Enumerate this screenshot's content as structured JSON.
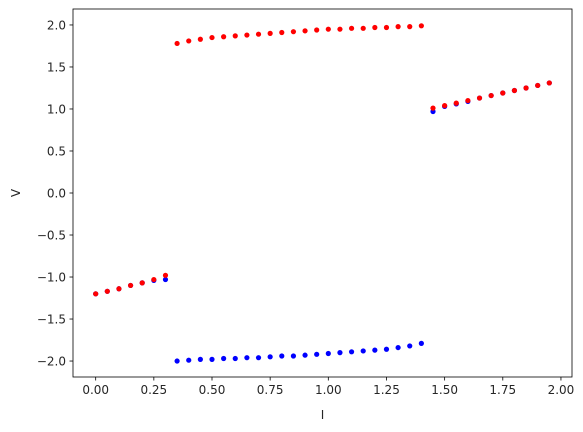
{
  "chart_data": {
    "type": "scatter",
    "xlabel": "I",
    "ylabel": "V",
    "xlim": [
      -0.0975,
      2.0475
    ],
    "ylim": [
      -2.19,
      2.19
    ],
    "xticks": [
      0.0,
      0.25,
      0.5,
      0.75,
      1.0,
      1.25,
      1.5,
      1.75,
      2.0
    ],
    "xtick_labels": [
      "0.00",
      "0.25",
      "0.50",
      "0.75",
      "1.00",
      "1.25",
      "1.50",
      "1.75",
      "2.00"
    ],
    "yticks": [
      -2.0,
      -1.5,
      -1.0,
      -0.5,
      0.0,
      0.5,
      1.0,
      1.5,
      2.0
    ],
    "ytick_labels": [
      "−2.0",
      "−1.5",
      "−1.0",
      "−0.5",
      "0.0",
      "0.5",
      "1.0",
      "1.5",
      "2.0"
    ],
    "grid": false,
    "series": [
      {
        "color": "#0000ff",
        "points": [
          [
            0.0,
            -1.2
          ],
          [
            0.05,
            -1.17
          ],
          [
            0.1,
            -1.14
          ],
          [
            0.15,
            -1.1
          ],
          [
            0.2,
            -1.07
          ],
          [
            0.25,
            -1.04
          ],
          [
            0.3,
            -1.03
          ],
          [
            0.35,
            -2.0
          ],
          [
            0.4,
            -1.99
          ],
          [
            0.45,
            -1.98
          ],
          [
            0.5,
            -1.98
          ],
          [
            0.55,
            -1.97
          ],
          [
            0.6,
            -1.97
          ],
          [
            0.65,
            -1.96
          ],
          [
            0.7,
            -1.96
          ],
          [
            0.75,
            -1.95
          ],
          [
            0.8,
            -1.94
          ],
          [
            0.85,
            -1.94
          ],
          [
            0.9,
            -1.93
          ],
          [
            0.95,
            -1.92
          ],
          [
            1.0,
            -1.91
          ],
          [
            1.05,
            -1.9
          ],
          [
            1.1,
            -1.89
          ],
          [
            1.15,
            -1.88
          ],
          [
            1.2,
            -1.87
          ],
          [
            1.25,
            -1.86
          ],
          [
            1.3,
            -1.84
          ],
          [
            1.35,
            -1.82
          ],
          [
            1.4,
            -1.79
          ],
          [
            1.45,
            0.97
          ],
          [
            1.5,
            1.03
          ],
          [
            1.55,
            1.06
          ],
          [
            1.6,
            1.09
          ],
          [
            1.65,
            1.13
          ],
          [
            1.7,
            1.16
          ],
          [
            1.75,
            1.19
          ],
          [
            1.8,
            1.22
          ],
          [
            1.85,
            1.25
          ],
          [
            1.9,
            1.28
          ],
          [
            1.95,
            1.31
          ]
        ]
      },
      {
        "color": "#ff0000",
        "points": [
          [
            0.0,
            -1.2
          ],
          [
            0.05,
            -1.17
          ],
          [
            0.1,
            -1.14
          ],
          [
            0.15,
            -1.1
          ],
          [
            0.2,
            -1.07
          ],
          [
            0.25,
            -1.03
          ],
          [
            0.3,
            -0.98
          ],
          [
            0.35,
            1.78
          ],
          [
            0.4,
            1.81
          ],
          [
            0.45,
            1.83
          ],
          [
            0.5,
            1.85
          ],
          [
            0.55,
            1.86
          ],
          [
            0.6,
            1.87
          ],
          [
            0.65,
            1.88
          ],
          [
            0.7,
            1.89
          ],
          [
            0.75,
            1.9
          ],
          [
            0.8,
            1.91
          ],
          [
            0.85,
            1.92
          ],
          [
            0.9,
            1.93
          ],
          [
            0.95,
            1.94
          ],
          [
            1.0,
            1.95
          ],
          [
            1.05,
            1.95
          ],
          [
            1.1,
            1.96
          ],
          [
            1.15,
            1.96
          ],
          [
            1.2,
            1.97
          ],
          [
            1.25,
            1.97
          ],
          [
            1.3,
            1.98
          ],
          [
            1.35,
            1.98
          ],
          [
            1.4,
            1.99
          ],
          [
            1.45,
            1.01
          ],
          [
            1.5,
            1.04
          ],
          [
            1.55,
            1.07
          ],
          [
            1.6,
            1.1
          ],
          [
            1.65,
            1.13
          ],
          [
            1.7,
            1.16
          ],
          [
            1.75,
            1.19
          ],
          [
            1.8,
            1.22
          ],
          [
            1.85,
            1.25
          ],
          [
            1.9,
            1.28
          ],
          [
            1.95,
            1.31
          ]
        ]
      }
    ]
  }
}
